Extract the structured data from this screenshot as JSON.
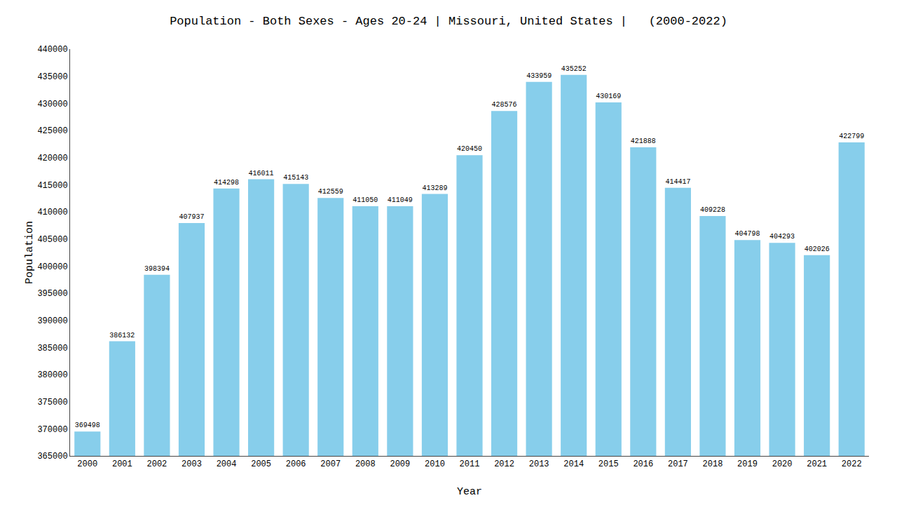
{
  "chart_data": {
    "type": "bar",
    "title": "Population - Both Sexes - Ages 20-24 | Missouri, United States |   (2000-2022)",
    "xlabel": "Year",
    "ylabel": "Population",
    "categories": [
      "2000",
      "2001",
      "2002",
      "2003",
      "2004",
      "2005",
      "2006",
      "2007",
      "2008",
      "2009",
      "2010",
      "2011",
      "2012",
      "2013",
      "2014",
      "2015",
      "2016",
      "2017",
      "2018",
      "2019",
      "2020",
      "2021",
      "2022"
    ],
    "values": [
      369498,
      386132,
      398394,
      407937,
      414298,
      416011,
      415143,
      412559,
      411050,
      411049,
      413289,
      420450,
      428576,
      433959,
      435252,
      430169,
      421888,
      414417,
      409228,
      404798,
      404293,
      402026,
      422799
    ],
    "color": "#87CEEB",
    "ylim": [
      365000,
      440000
    ],
    "yticks": [
      365000,
      370000,
      375000,
      380000,
      385000,
      390000,
      395000,
      400000,
      405000,
      410000,
      415000,
      420000,
      425000,
      430000,
      435000,
      440000
    ],
    "grid": false,
    "data_labels": true
  }
}
